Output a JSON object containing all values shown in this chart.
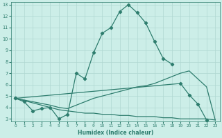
{
  "xlabel": "Humidex (Indice chaleur)",
  "bg_color": "#cceee8",
  "line_color": "#2e7d6e",
  "grid_color": "#b0d8d2",
  "xlim": [
    -0.5,
    23.5
  ],
  "ylim": [
    2.8,
    13.2
  ],
  "xticks": [
    0,
    1,
    2,
    3,
    4,
    5,
    6,
    7,
    8,
    9,
    10,
    11,
    12,
    13,
    14,
    15,
    16,
    17,
    18,
    19,
    20,
    21,
    22,
    23
  ],
  "yticks": [
    3,
    4,
    5,
    6,
    7,
    8,
    9,
    10,
    11,
    12,
    13
  ],
  "s1_x": [
    0,
    1,
    2,
    3,
    4,
    5,
    6,
    7,
    8,
    9,
    10,
    11,
    12,
    13,
    14,
    15,
    16,
    17,
    18
  ],
  "s1_y": [
    4.8,
    4.5,
    3.7,
    3.9,
    4.0,
    3.0,
    3.4,
    7.0,
    6.5,
    8.8,
    10.5,
    11.0,
    12.4,
    13.0,
    12.3,
    11.4,
    9.8,
    8.3,
    7.8
  ],
  "s2_x": [
    0,
    19,
    20,
    21,
    22
  ],
  "s2_y": [
    4.8,
    6.1,
    5.1,
    4.3,
    2.9
  ],
  "s3_x": [
    0,
    4,
    5,
    6,
    7,
    8,
    9,
    10,
    11,
    12,
    13,
    14,
    15,
    16,
    17,
    18,
    19,
    20,
    21,
    22,
    23
  ],
  "s3_y": [
    4.8,
    4.0,
    3.8,
    3.7,
    3.6,
    3.5,
    3.5,
    3.4,
    3.4,
    3.3,
    3.3,
    3.2,
    3.2,
    3.2,
    3.1,
    3.1,
    3.0,
    3.0,
    3.0,
    3.0,
    2.9
  ],
  "s4_x": [
    0,
    4,
    5,
    6,
    7,
    8,
    9,
    10,
    11,
    12,
    13,
    14,
    15,
    16,
    17,
    18,
    19,
    20,
    21,
    22,
    23
  ],
  "s4_y": [
    4.8,
    4.2,
    4.0,
    3.9,
    4.2,
    4.5,
    4.8,
    5.0,
    5.2,
    5.4,
    5.6,
    5.8,
    5.9,
    6.1,
    6.4,
    6.7,
    7.0,
    7.2,
    6.5,
    5.8,
    2.9
  ]
}
